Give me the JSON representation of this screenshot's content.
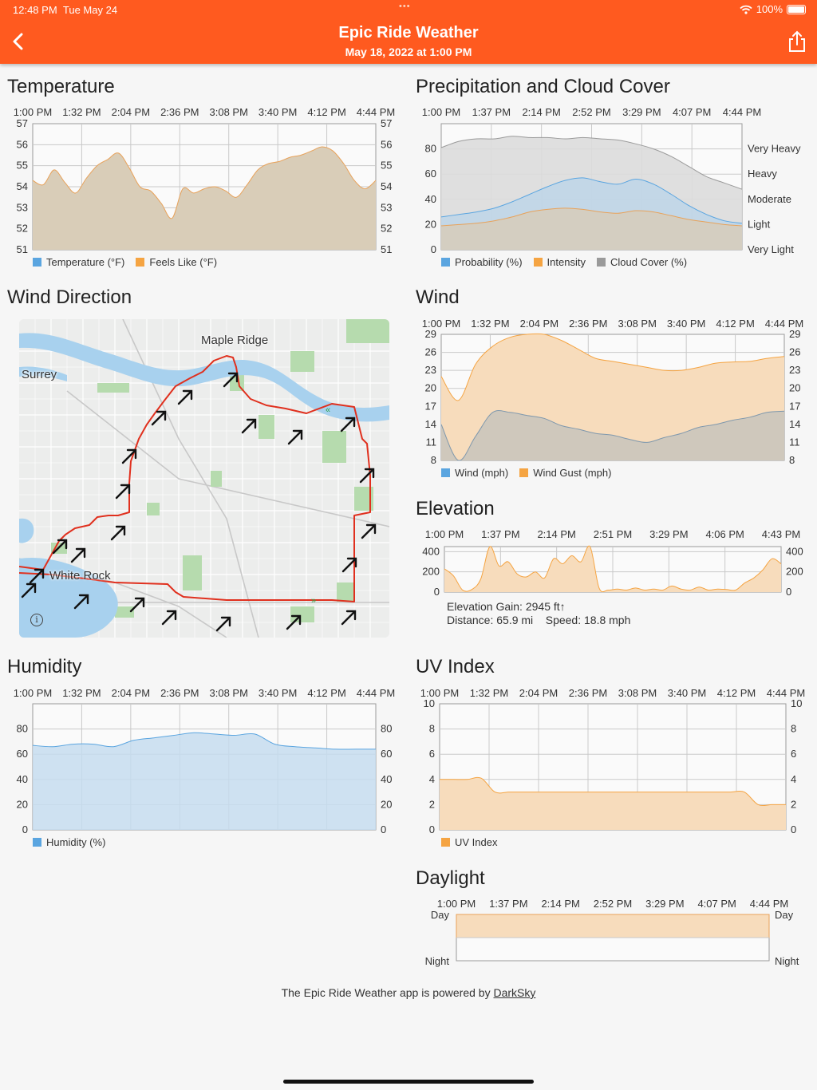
{
  "status_bar": {
    "time": "12:48 PM",
    "date": "Tue May 24",
    "dots": "•••",
    "battery": "100%"
  },
  "nav": {
    "title": "Epic Ride Weather",
    "subtitle": "May 18, 2022 at 1:00 PM",
    "back_icon": "chevron-left-icon",
    "share_icon": "share-icon",
    "bar_color": "#ff5a1f"
  },
  "sections": {
    "temperature": "Temperature",
    "precipitation": "Precipitation and Cloud Cover",
    "wind_direction": "Wind Direction",
    "wind": "Wind",
    "elevation": "Elevation",
    "humidity": "Humidity",
    "uv": "UV Index",
    "daylight": "Daylight"
  },
  "map": {
    "labels": {
      "maple_ridge": "Maple Ridge",
      "surrey": "Surrey",
      "white_rock": "White Rock"
    },
    "info_icon": "info-icon",
    "route_color": "#e0301e"
  },
  "elevation_info": {
    "gain": "Elevation Gain: 2945 ft↑",
    "distance": "Distance: 65.9 mi",
    "speed": "Speed: 18.8 mph"
  },
  "footer": {
    "text": "The Epic Ride Weather app is powered by",
    "link": "DarkSky"
  },
  "colors": {
    "blue": "#5aa5e0",
    "orange": "#f5a442",
    "gray": "#9a9a9a",
    "tan_fill": "#d9cdb8"
  },
  "chart_data": [
    {
      "id": "temperature",
      "type": "area",
      "x_ticks": [
        "1:00 PM",
        "1:32 PM",
        "2:04 PM",
        "2:36 PM",
        "3:08 PM",
        "3:40 PM",
        "4:12 PM",
        "4:44 PM"
      ],
      "ylim": [
        51,
        57
      ],
      "y_ticks": [
        "57",
        "56",
        "55",
        "54",
        "53",
        "52",
        "51"
      ],
      "legend": [
        "Temperature (°F)",
        "Feels Like (°F)"
      ],
      "series": [
        {
          "name": "Temperature (°F)",
          "values": [
            54.3,
            54.1,
            54.8,
            54.2,
            53.7,
            54.4,
            55.0,
            55.3,
            55.6,
            54.9,
            54.0,
            53.8,
            53.2,
            52.5,
            53.9,
            53.7,
            53.9,
            54.0,
            53.8,
            53.5,
            54.1,
            54.8,
            55.1,
            55.2,
            55.4,
            55.5,
            55.7,
            55.9,
            55.7,
            55.1,
            54.3,
            53.9,
            54.3
          ]
        },
        {
          "name": "Feels Like (°F)",
          "values": [
            54.3,
            54.1,
            54.8,
            54.2,
            53.7,
            54.4,
            55.0,
            55.3,
            55.6,
            54.9,
            54.0,
            53.8,
            53.2,
            52.5,
            53.9,
            53.7,
            53.9,
            54.0,
            53.8,
            53.5,
            54.1,
            54.8,
            55.1,
            55.2,
            55.4,
            55.5,
            55.7,
            55.9,
            55.7,
            55.1,
            54.3,
            53.9,
            54.3
          ]
        }
      ]
    },
    {
      "id": "precipitation",
      "type": "area",
      "x_ticks": [
        "1:00 PM",
        "1:37 PM",
        "2:14 PM",
        "2:52 PM",
        "3:29 PM",
        "4:07 PM",
        "4:44 PM"
      ],
      "ylim": [
        0,
        100
      ],
      "y_ticks": [
        "80",
        "60",
        "40",
        "20",
        "0"
      ],
      "right_labels": [
        "Very Heavy",
        "Heavy",
        "Moderate",
        "Light",
        "Very Light"
      ],
      "legend": [
        "Probability (%)",
        "Intensity",
        "Cloud Cover (%)"
      ],
      "series": [
        {
          "name": "Cloud Cover (%)",
          "values": [
            81,
            86,
            88,
            88,
            90,
            89,
            89,
            88,
            89,
            88,
            87,
            84,
            80,
            74,
            66,
            58,
            53,
            48
          ]
        },
        {
          "name": "Probability (%)",
          "values": [
            26,
            28,
            30,
            33,
            38,
            44,
            50,
            55,
            57,
            54,
            52,
            56,
            52,
            44,
            35,
            28,
            23,
            21
          ]
        },
        {
          "name": "Intensity",
          "values": [
            19,
            20,
            21,
            23,
            26,
            30,
            32,
            33,
            32,
            30,
            29,
            31,
            30,
            27,
            24,
            22,
            20,
            19
          ]
        }
      ]
    },
    {
      "id": "wind",
      "type": "area",
      "x_ticks": [
        "1:00 PM",
        "1:32 PM",
        "2:04 PM",
        "2:36 PM",
        "3:08 PM",
        "3:40 PM",
        "4:12 PM",
        "4:44 PM"
      ],
      "ylim": [
        8,
        29
      ],
      "y_ticks": [
        "29",
        "26",
        "23",
        "20",
        "17",
        "14",
        "11",
        "8"
      ],
      "legend": [
        "Wind (mph)",
        "Wind Gust (mph)"
      ],
      "series": [
        {
          "name": "Wind Gust (mph)",
          "values": [
            22,
            18,
            24,
            27,
            28.5,
            29,
            29,
            28,
            26.5,
            25,
            24.5,
            24,
            23.5,
            23,
            23,
            23.5,
            24.2,
            24.4,
            24.5,
            25,
            25.3
          ]
        },
        {
          "name": "Wind (mph)",
          "values": [
            14,
            8,
            12,
            16,
            16,
            15.5,
            15,
            13.8,
            13.2,
            12.5,
            12.2,
            11.5,
            11,
            11.8,
            12.5,
            13.5,
            14,
            14.7,
            15.2,
            16,
            16.2
          ]
        }
      ]
    },
    {
      "id": "elevation",
      "type": "area",
      "x_ticks": [
        "1:00 PM",
        "1:37 PM",
        "2:14 PM",
        "2:51 PM",
        "3:29 PM",
        "4:06 PM",
        "4:43 PM"
      ],
      "ylim": [
        0,
        450
      ],
      "y_ticks": [
        "400",
        "200",
        "0"
      ],
      "series": [
        {
          "name": "Elevation",
          "values": [
            230,
            160,
            20,
            25,
            130,
            460,
            260,
            300,
            180,
            150,
            200,
            140,
            330,
            280,
            360,
            300,
            460,
            40,
            20,
            30,
            20,
            40,
            20,
            30,
            20,
            60,
            30,
            20,
            50,
            20,
            30,
            25,
            20,
            90,
            140,
            220,
            330,
            280
          ]
        }
      ]
    },
    {
      "id": "humidity",
      "type": "area",
      "x_ticks": [
        "1:00 PM",
        "1:32 PM",
        "2:04 PM",
        "2:36 PM",
        "3:08 PM",
        "3:40 PM",
        "4:12 PM",
        "4:44 PM"
      ],
      "ylim": [
        0,
        100
      ],
      "y_ticks": [
        "80",
        "60",
        "40",
        "20",
        "0"
      ],
      "legend": [
        "Humidity (%)"
      ],
      "series": [
        {
          "name": "Humidity (%)",
          "values": [
            67,
            66,
            68,
            68,
            66,
            71,
            73,
            75,
            77,
            76,
            75,
            76,
            68,
            66,
            65,
            64,
            64,
            64
          ]
        }
      ]
    },
    {
      "id": "uv",
      "type": "area",
      "x_ticks": [
        "1:00 PM",
        "1:32 PM",
        "2:04 PM",
        "2:36 PM",
        "3:08 PM",
        "3:40 PM",
        "4:12 PM",
        "4:44 PM"
      ],
      "ylim": [
        0,
        10
      ],
      "y_ticks": [
        "10",
        "8",
        "6",
        "4",
        "2",
        "0"
      ],
      "legend": [
        "UV Index"
      ],
      "series": [
        {
          "name": "UV Index",
          "values": [
            4,
            4,
            4,
            4.1,
            3,
            3,
            3,
            3,
            3,
            3,
            3,
            3,
            3,
            3,
            3,
            3,
            3,
            3,
            3,
            3,
            3,
            3,
            3,
            2,
            2,
            2
          ]
        }
      ]
    },
    {
      "id": "daylight",
      "type": "area",
      "x_ticks": [
        "1:00 PM",
        "1:37 PM",
        "2:14 PM",
        "2:52 PM",
        "3:29 PM",
        "4:07 PM",
        "4:44 PM"
      ],
      "y_labels": [
        "Day",
        "Night"
      ],
      "series": [
        {
          "name": "Daylight",
          "values": [
            1,
            1,
            1,
            1,
            1,
            1,
            1
          ]
        }
      ]
    }
  ]
}
